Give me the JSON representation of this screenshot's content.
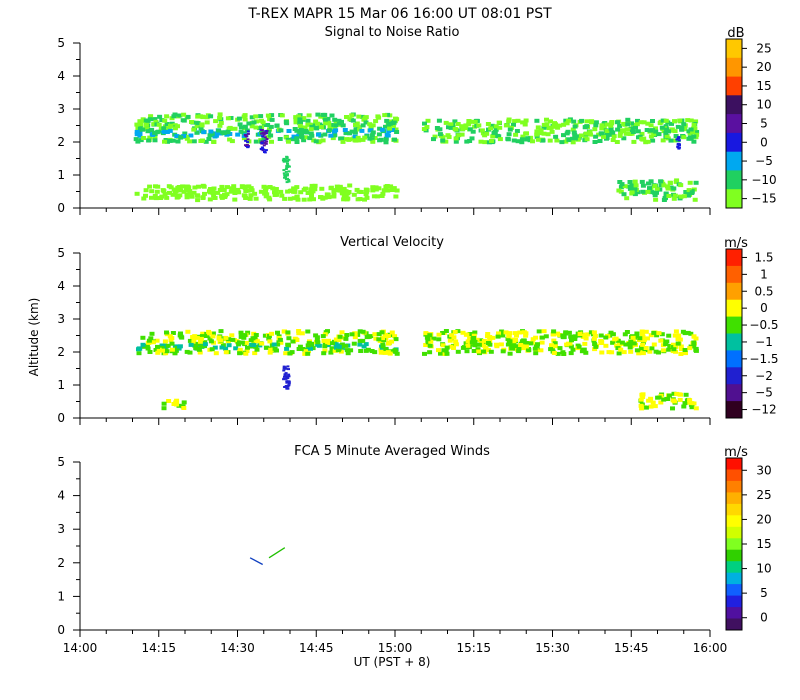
{
  "header": {
    "title": "T-REX   MAPR 15 Mar 06   16:00 UT   08:01   PST"
  },
  "chart_data": [
    {
      "type": "heatmap",
      "title": "Signal to Noise Ratio",
      "ylabel": "",
      "ylim": [
        0,
        5
      ],
      "yticks": [
        "0",
        "1",
        "2",
        "3",
        "4",
        "5"
      ],
      "colorbar": {
        "unit": "dB",
        "labels": [
          "25",
          "20",
          "15",
          "10",
          "5",
          "0",
          "−5",
          "−10",
          "−15"
        ],
        "colors": [
          "#ffc800",
          "#ff9600",
          "#ff4000",
          "#3c1060",
          "#5a10a0",
          "#1818e0",
          "#00a8f0",
          "#20d060",
          "#80ff20"
        ]
      },
      "features": [
        {
          "name": "main-band",
          "x": [
            14.17,
            15.0
          ],
          "y": [
            2.05,
            2.9
          ],
          "colors": [
            "#80ff20",
            "#20d060",
            "#00a8f0"
          ]
        },
        {
          "name": "main-band",
          "x": [
            15.08,
            15.95
          ],
          "y": [
            2.05,
            2.75
          ],
          "colors": [
            "#80ff20",
            "#20d060"
          ]
        },
        {
          "name": "low-band",
          "x": [
            14.17,
            15.0
          ],
          "y": [
            0.3,
            0.75
          ],
          "colors": [
            "#80ff20"
          ]
        },
        {
          "name": "low-band",
          "x": [
            15.7,
            15.95
          ],
          "y": [
            0.3,
            0.9
          ],
          "colors": [
            "#80ff20",
            "#20d060"
          ]
        },
        {
          "name": "strong-streak",
          "x": [
            14.52,
            14.53
          ],
          "y": [
            1.8,
            2.4
          ],
          "colors": [
            "#1818e0",
            "#5a10a0"
          ]
        },
        {
          "name": "strong-streak",
          "x": [
            14.57,
            14.59
          ],
          "y": [
            1.7,
            2.4
          ],
          "colors": [
            "#1818e0",
            "#5a10a0"
          ]
        },
        {
          "name": "column",
          "x": [
            14.64,
            14.66
          ],
          "y": [
            0.8,
            1.6
          ],
          "colors": [
            "#20d060"
          ]
        },
        {
          "name": "strong-streak",
          "x": [
            15.89,
            15.9
          ],
          "y": [
            1.6,
            2.2
          ],
          "colors": [
            "#1818e0"
          ]
        }
      ]
    },
    {
      "type": "heatmap",
      "title": "Vertical Velocity",
      "ylabel": "Altitude (km)",
      "ylim": [
        0,
        5
      ],
      "yticks": [
        "0",
        "1",
        "2",
        "3",
        "4",
        "5"
      ],
      "colorbar": {
        "unit": "m/s",
        "labels": [
          "1.5",
          "1",
          "0.5",
          "0",
          "−0.5",
          "−1",
          "−1.5",
          "−2",
          "−5",
          "−12"
        ],
        "colors": [
          "#ff2000",
          "#ff6000",
          "#ffa000",
          "#ffff00",
          "#40e000",
          "#00c0a0",
          "#0070ff",
          "#2020d0",
          "#501090",
          "#300020"
        ]
      },
      "features": [
        {
          "name": "main-band",
          "x": [
            14.17,
            15.0
          ],
          "y": [
            2.0,
            2.7
          ],
          "colors": [
            "#ffff00",
            "#40e000",
            "#00c0a0"
          ]
        },
        {
          "name": "main-band",
          "x": [
            15.08,
            15.95
          ],
          "y": [
            2.0,
            2.7
          ],
          "colors": [
            "#ffff00",
            "#40e000"
          ]
        },
        {
          "name": "column",
          "x": [
            14.64,
            14.66
          ],
          "y": [
            0.9,
            1.6
          ],
          "colors": [
            "#2020d0"
          ]
        },
        {
          "name": "low-patch",
          "x": [
            14.25,
            14.33
          ],
          "y": [
            0.35,
            0.6
          ],
          "colors": [
            "#40e000",
            "#ffff00"
          ]
        },
        {
          "name": "low-patch",
          "x": [
            15.77,
            15.95
          ],
          "y": [
            0.35,
            0.8
          ],
          "colors": [
            "#40e000",
            "#ffff00"
          ]
        }
      ]
    },
    {
      "type": "line",
      "title": "FCA 5 Minute Averaged Winds",
      "ylabel": "",
      "ylim": [
        0,
        5
      ],
      "yticks": [
        "0",
        "1",
        "2",
        "3",
        "4",
        "5"
      ],
      "colorbar": {
        "unit": "m/s",
        "labels": [
          "30",
          "25",
          "20",
          "15",
          "10",
          "5",
          "0"
        ],
        "colors": [
          "#ff1000",
          "#ff5000",
          "#ff8000",
          "#ffb000",
          "#ffd800",
          "#ffff00",
          "#d0ff00",
          "#80ff20",
          "#30d000",
          "#00d080",
          "#00b0e0",
          "#1060ff",
          "#2020e0",
          "#5010a0",
          "#401060"
        ]
      },
      "series": [
        {
          "name": "wind-segment-1",
          "x": [
            14.54,
            14.58
          ],
          "y": [
            2.15,
            1.95
          ],
          "color": "#1040c0"
        },
        {
          "name": "wind-segment-2",
          "x": [
            14.6,
            14.65
          ],
          "y": [
            2.15,
            2.45
          ],
          "color": "#20c000"
        }
      ]
    }
  ],
  "xaxis": {
    "range": [
      14.0,
      16.0
    ],
    "ticks": [
      "14:00",
      "14:15",
      "14:30",
      "14:45",
      "15:00",
      "15:15",
      "15:30",
      "15:45",
      "16:00"
    ],
    "xlabel": "UT  (PST + 8)"
  }
}
